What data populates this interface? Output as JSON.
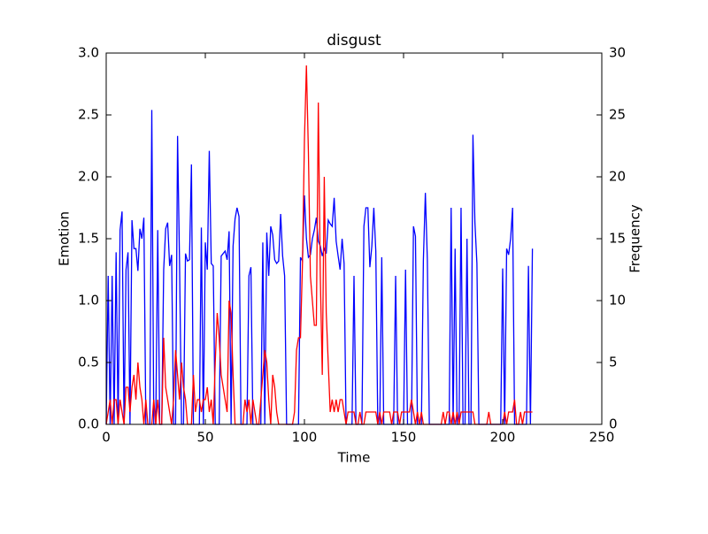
{
  "chart_data": {
    "type": "line",
    "title": "disgust",
    "xlabel": "Time",
    "ylabel": "Emotion",
    "y2label": "Frequency",
    "x": [
      0,
      1,
      2,
      3,
      4,
      5,
      6,
      7,
      8,
      9,
      10,
      11,
      12,
      13,
      14,
      15,
      16,
      17,
      18,
      19,
      20,
      21,
      22,
      23,
      24,
      25,
      26,
      27,
      28,
      29,
      30,
      31,
      32,
      33,
      34,
      35,
      36,
      37,
      38,
      39,
      40,
      41,
      42,
      43,
      44,
      45,
      46,
      47,
      48,
      49,
      50,
      51,
      52,
      53,
      54,
      55,
      56,
      57,
      58,
      59,
      60,
      61,
      62,
      63,
      64,
      65,
      66,
      67,
      68,
      69,
      70,
      71,
      72,
      73,
      74,
      75,
      76,
      77,
      78,
      79,
      80,
      81,
      82,
      83,
      84,
      85,
      86,
      87,
      88,
      89,
      90,
      91,
      92,
      93,
      94,
      95,
      96,
      97,
      98,
      99,
      100,
      101,
      102,
      103,
      104,
      105,
      106,
      107,
      108,
      109,
      110,
      111,
      112,
      113,
      114,
      115,
      116,
      117,
      118,
      119,
      120,
      121,
      122,
      123,
      124,
      125,
      126,
      127,
      128,
      129,
      130,
      131,
      132,
      133,
      134,
      135,
      136,
      137,
      138,
      139,
      140,
      141,
      142,
      143,
      144,
      145,
      146,
      147,
      148,
      149,
      150,
      151,
      152,
      153,
      154,
      155,
      156,
      157,
      158,
      159,
      160,
      161,
      162,
      163,
      164,
      165,
      166,
      167,
      168,
      169,
      170,
      171,
      172,
      173,
      174,
      175,
      176,
      177,
      178,
      179,
      180,
      181,
      182,
      183,
      184,
      185,
      186,
      187,
      188,
      189,
      190,
      191,
      192,
      193,
      194,
      195,
      196,
      197,
      198,
      199,
      200,
      201,
      202,
      203,
      204,
      205,
      206,
      207,
      208,
      209,
      210,
      211,
      212,
      213,
      214,
      215
    ],
    "series": [
      {
        "name": "Emotion",
        "color": "#0000ff",
        "axis": "y",
        "values": [
          0,
          1.2,
          0,
          1.2,
          0,
          1.39,
          0,
          1.57,
          1.72,
          0,
          1.25,
          1.39,
          0,
          1.65,
          1.42,
          1.42,
          1.24,
          1.58,
          1.5,
          1.67,
          0,
          0,
          0,
          2.54,
          0,
          0,
          1.57,
          0,
          0,
          1.25,
          1.58,
          1.63,
          1.28,
          1.37,
          0,
          0,
          2.33,
          1.3,
          0,
          0,
          1.38,
          1.32,
          1.33,
          2.1,
          0,
          0,
          0,
          0,
          1.59,
          0,
          1.47,
          1.25,
          2.21,
          1.3,
          1.28,
          0,
          0,
          0,
          1.36,
          1.38,
          1.4,
          1.33,
          1.56,
          0,
          1.44,
          1.66,
          1.75,
          1.68,
          0,
          0,
          0,
          0,
          1.2,
          1.27,
          0,
          0,
          0,
          0,
          0,
          1.47,
          0,
          1.55,
          1.2,
          1.6,
          1.53,
          1.33,
          1.3,
          1.32,
          1.7,
          1.36,
          1.2,
          0,
          0,
          0,
          0,
          0,
          0,
          0,
          1.35,
          1.32,
          1.85,
          1.5,
          1.35,
          1.37,
          1.5,
          1.57,
          1.67,
          1.48,
          1.44,
          1.36,
          1.42,
          1.38,
          1.65,
          1.62,
          1.6,
          1.83,
          1.48,
          1.36,
          1.25,
          1.5,
          1.3,
          0,
          0,
          0,
          0,
          1.2,
          0,
          0,
          0,
          0,
          1.6,
          1.75,
          1.75,
          1.27,
          1.44,
          1.75,
          1.4,
          0,
          0,
          1.35,
          0,
          0,
          0,
          0,
          0,
          0,
          1.2,
          0,
          0,
          0,
          0,
          1.25,
          0,
          0,
          0,
          1.6,
          1.52,
          0,
          0,
          0,
          1.33,
          1.87,
          1.33,
          0,
          0,
          0,
          0,
          0,
          0,
          0,
          0,
          0,
          0,
          0,
          1.75,
          0,
          1.42,
          0,
          0,
          1.75,
          0,
          0,
          1.5,
          0,
          0,
          2.34,
          1.63,
          1.3,
          0,
          0,
          0,
          0,
          0,
          0,
          0,
          0,
          0,
          0,
          0,
          0,
          1.26,
          0,
          1.42,
          1.37,
          1.5,
          1.75,
          0,
          0,
          0,
          0,
          0,
          0,
          0,
          1.28,
          0,
          1.42
        ]
      },
      {
        "name": "Frequency",
        "color": "#ff0000",
        "axis": "y2",
        "values": [
          0,
          1,
          2,
          0,
          2,
          2,
          0,
          2,
          1,
          0,
          3,
          3,
          1,
          3,
          4,
          2,
          5,
          3,
          2,
          0,
          2,
          0,
          0,
          0,
          2,
          0,
          2,
          0,
          0,
          7,
          3,
          2,
          1,
          0,
          2,
          6,
          4,
          2,
          5,
          3,
          2,
          0,
          0,
          0,
          4,
          1,
          2,
          2,
          1,
          2,
          2,
          3,
          1,
          2,
          0,
          5,
          9,
          7,
          4,
          3,
          2,
          1,
          10,
          9,
          4,
          0,
          0,
          0,
          0,
          0,
          2,
          1,
          2,
          0,
          2,
          1,
          0,
          0,
          2,
          4,
          6,
          5,
          2,
          0,
          4,
          3,
          1,
          0,
          0,
          0,
          0,
          0,
          0,
          0,
          0,
          1,
          6,
          7,
          7,
          13,
          23,
          29,
          22,
          12,
          10,
          8,
          8,
          26,
          12,
          4,
          20,
          9,
          5,
          1,
          2,
          1,
          2,
          1,
          2,
          2,
          1,
          0,
          1,
          1,
          1,
          1,
          0,
          0,
          1,
          0,
          0,
          1,
          1,
          1,
          1,
          1,
          1,
          0,
          1,
          0,
          1,
          1,
          1,
          1,
          0,
          1,
          1,
          1,
          0,
          1,
          1,
          1,
          1,
          1,
          2,
          1,
          0,
          1,
          0,
          1,
          0,
          0,
          0,
          0,
          0,
          0,
          0,
          0,
          0,
          0,
          1,
          0,
          1,
          1,
          0,
          1,
          0,
          1,
          0,
          1,
          1,
          1,
          1,
          1,
          1,
          1,
          0,
          0,
          0,
          0,
          0,
          0,
          0,
          1,
          0,
          0,
          0,
          0,
          0,
          0,
          0,
          1,
          0,
          1,
          1,
          1,
          2,
          0,
          0,
          1,
          0,
          1,
          1,
          1,
          1,
          1
        ]
      }
    ],
    "xlim": [
      0,
      250
    ],
    "xticks": [
      0,
      50,
      100,
      150,
      200,
      250
    ],
    "ylim": [
      0,
      3
    ],
    "yticks": [
      {
        "value": 0,
        "label": "0.0"
      },
      {
        "value": 0.5,
        "label": "0.5"
      },
      {
        "value": 1,
        "label": "1.0"
      },
      {
        "value": 1.5,
        "label": "1.5"
      },
      {
        "value": 2,
        "label": "2.0"
      },
      {
        "value": 2.5,
        "label": "2.5"
      },
      {
        "value": 3,
        "label": "3.0"
      }
    ],
    "y2lim": [
      0,
      30
    ],
    "y2ticks": [
      0,
      5,
      10,
      15,
      20,
      25,
      30
    ]
  }
}
